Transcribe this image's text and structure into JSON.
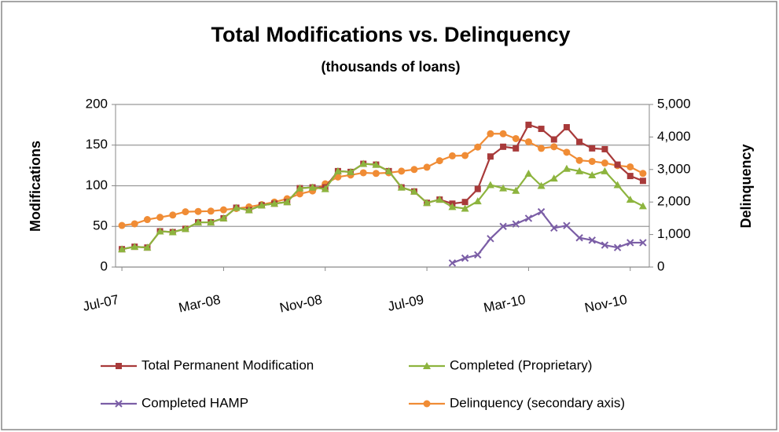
{
  "chart_data": {
    "type": "line",
    "title": "Total Modifications vs. Delinquency",
    "subtitle": "(thousands of loans)",
    "y_label": "Modifications",
    "y2_label": "Delinquency",
    "categories": [
      "Jul-07",
      null,
      null,
      null,
      null,
      null,
      null,
      null,
      "Mar-08",
      null,
      null,
      null,
      null,
      null,
      null,
      null,
      "Nov-08",
      null,
      null,
      null,
      null,
      null,
      null,
      null,
      "Jul-09",
      null,
      null,
      null,
      null,
      null,
      null,
      null,
      "Mar-10",
      null,
      null,
      null,
      null,
      null,
      null,
      null,
      "Nov-10",
      null
    ],
    "ylim": [
      0,
      200
    ],
    "yticks": [
      0,
      50,
      100,
      150,
      200
    ],
    "y2lim": [
      0,
      5000
    ],
    "y2ticks": [
      0,
      {
        "value": 1000,
        "label": "1,000"
      },
      {
        "value": 2000,
        "label": "2,000"
      },
      {
        "value": 3000,
        "label": "3,000"
      },
      {
        "value": 4000,
        "label": "4,000"
      },
      {
        "value": 5000,
        "label": "5,000"
      }
    ],
    "grid": true,
    "legend": "bottom",
    "series": [
      {
        "name": "Total Permanent Modification",
        "color": "#a83a3a",
        "marker": "square",
        "values": [
          22,
          25,
          24,
          44,
          43,
          47,
          55,
          55,
          60,
          73,
          70,
          76,
          78,
          80,
          97,
          98,
          98,
          118,
          117,
          127,
          126,
          118,
          98,
          93,
          79,
          83,
          78,
          80,
          96,
          136,
          148,
          146,
          175,
          170,
          157,
          172,
          154,
          146,
          145,
          126,
          112,
          106
        ]
      },
      {
        "name": "Completed (Proprietary)",
        "color": "#8db43e",
        "marker": "triangle",
        "values": [
          22,
          25,
          24,
          44,
          43,
          47,
          55,
          55,
          60,
          73,
          70,
          76,
          78,
          80,
          97,
          98,
          96,
          118,
          117,
          127,
          126,
          118,
          98,
          93,
          79,
          83,
          74,
          72,
          81,
          101,
          97,
          94,
          115,
          100,
          109,
          121,
          118,
          113,
          118,
          101,
          83,
          75
        ]
      },
      {
        "name": "Completed HAMP",
        "color": "#7b5ea6",
        "marker": "x",
        "values": [
          null,
          null,
          null,
          null,
          null,
          null,
          null,
          null,
          null,
          null,
          null,
          null,
          null,
          null,
          null,
          null,
          null,
          null,
          null,
          null,
          null,
          null,
          null,
          null,
          null,
          null,
          5,
          11,
          15,
          35,
          50,
          53,
          60,
          68,
          48,
          51,
          36,
          33,
          27,
          24,
          30,
          30
        ]
      },
      {
        "name": "Delinquency (secondary axis)",
        "color": "#f08c35",
        "marker": "circle",
        "axis": "y2",
        "values": [
          1280,
          1330,
          1460,
          1530,
          1600,
          1700,
          1710,
          1720,
          1760,
          1800,
          1850,
          1920,
          2000,
          2100,
          2250,
          2340,
          2560,
          2770,
          2830,
          2900,
          2880,
          2900,
          2950,
          3000,
          3070,
          3270,
          3420,
          3430,
          3690,
          4100,
          4100,
          3950,
          3850,
          3650,
          3700,
          3530,
          3280,
          3250,
          3200,
          3120,
          3080,
          2880
        ]
      }
    ]
  }
}
